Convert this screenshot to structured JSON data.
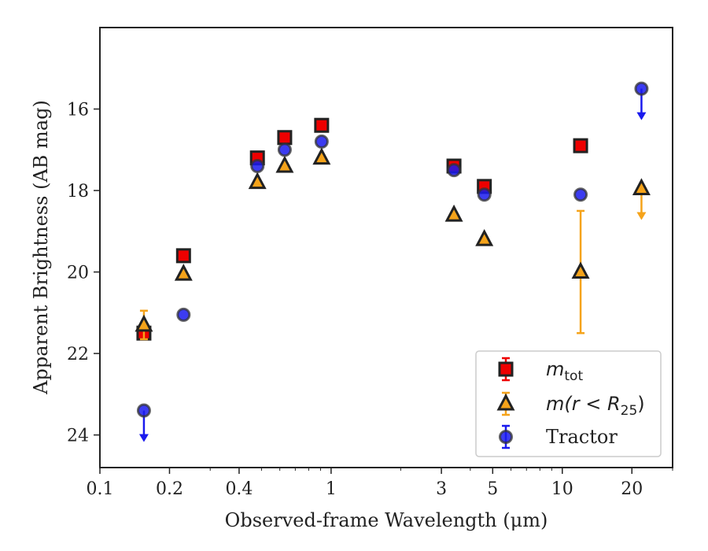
{
  "chart_data": {
    "type": "scatter",
    "title": "",
    "xlabel": "Observed-frame Wavelength (μm)",
    "ylabel": "Apparent Brightness (AB mag)",
    "xscale": "log",
    "xlim": [
      0.1,
      30
    ],
    "ylim": [
      24.8,
      14.0
    ],
    "y_inverted": true,
    "xticks": [
      0.1,
      0.2,
      0.4,
      1,
      3,
      5,
      10,
      20
    ],
    "xtick_labels": [
      "0.1",
      "0.2",
      "0.4",
      "1",
      "3",
      "5",
      "10",
      "20"
    ],
    "yticks": [
      16,
      18,
      20,
      22,
      24
    ],
    "ytick_labels": [
      "16",
      "18",
      "20",
      "22",
      "24"
    ],
    "grid": false,
    "legend_position": "bottom-right",
    "series": [
      {
        "name": "m_tot",
        "legend_main": "m",
        "legend_sub": "tot",
        "marker": "square",
        "color": "#ee0000",
        "points": [
          {
            "x": 0.155,
            "y": 21.5
          },
          {
            "x": 0.23,
            "y": 19.6
          },
          {
            "x": 0.48,
            "y": 17.2
          },
          {
            "x": 0.63,
            "y": 16.7
          },
          {
            "x": 0.91,
            "y": 16.4
          },
          {
            "x": 3.4,
            "y": 17.4
          },
          {
            "x": 4.6,
            "y": 17.9
          },
          {
            "x": 12.0,
            "y": 16.9
          }
        ]
      },
      {
        "name": "m(r < R25)",
        "legend_main": "m(r < R",
        "legend_sub": "25",
        "legend_close": ")",
        "marker": "triangle",
        "color": "#f5a31a",
        "points": [
          {
            "x": 0.155,
            "y": 21.3,
            "yerr": 0.35
          },
          {
            "x": 0.23,
            "y": 20.05
          },
          {
            "x": 0.48,
            "y": 17.8
          },
          {
            "x": 0.63,
            "y": 17.4
          },
          {
            "x": 0.91,
            "y": 17.2
          },
          {
            "x": 3.4,
            "y": 18.6
          },
          {
            "x": 4.6,
            "y": 19.2
          },
          {
            "x": 12.0,
            "y": 20.0,
            "yerr_low": 1.5,
            "yerr_high": 1.5
          },
          {
            "x": 22.0,
            "y": 17.95,
            "upper_limit": true
          }
        ]
      },
      {
        "name": "Tractor",
        "legend_main": "Tractor",
        "marker": "circle",
        "color": "#1a1aee",
        "points": [
          {
            "x": 0.155,
            "y": 23.4,
            "upper_limit": true
          },
          {
            "x": 0.23,
            "y": 21.05
          },
          {
            "x": 0.48,
            "y": 17.4
          },
          {
            "x": 0.63,
            "y": 17.0
          },
          {
            "x": 0.91,
            "y": 16.8
          },
          {
            "x": 3.4,
            "y": 17.5
          },
          {
            "x": 4.6,
            "y": 18.1
          },
          {
            "x": 12.0,
            "y": 18.1
          },
          {
            "x": 22.0,
            "y": 15.5,
            "upper_limit": true
          }
        ]
      }
    ]
  }
}
